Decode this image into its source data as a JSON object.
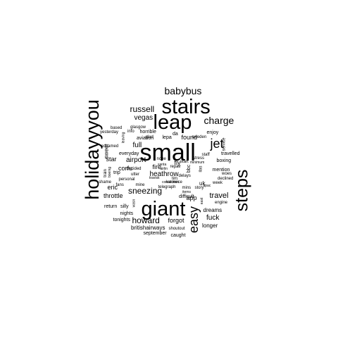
{
  "chart_data": {
    "type": "wordcloud",
    "color": "#000000",
    "title": "",
    "words": [
      {
        "text": "small",
        "rank": 1
      },
      {
        "text": "giant",
        "rank": 2
      },
      {
        "text": "stairs",
        "rank": 3
      },
      {
        "text": "leap",
        "rank": 4
      },
      {
        "text": "holidayyyou",
        "rank": 5
      },
      {
        "text": "steps",
        "rank": 6
      },
      {
        "text": "easy",
        "rank": 7
      },
      {
        "text": "babybus",
        "rank": 8
      },
      {
        "text": "jet",
        "rank": 9
      },
      {
        "text": "charge",
        "rank": 10
      },
      {
        "text": "russell",
        "rank": 11
      },
      {
        "text": "howard",
        "rank": 12
      },
      {
        "text": "sneezing",
        "rank": 13
      },
      {
        "text": "travel",
        "rank": 14
      },
      {
        "text": "fuck",
        "rank": 15
      },
      {
        "text": "vegas",
        "rank": 16
      },
      {
        "text": "heathrow",
        "rank": 17
      },
      {
        "text": "full",
        "rank": 18
      },
      {
        "text": "airport",
        "rank": 19
      },
      {
        "text": "fire",
        "rank": 20
      },
      {
        "text": "fly",
        "rank": 21
      },
      {
        "text": "found",
        "rank": 22
      },
      {
        "text": "app",
        "rank": 23
      },
      {
        "text": "forgot",
        "rank": 24
      },
      {
        "text": "corfu",
        "rank": 25
      },
      {
        "text": "star",
        "rank": 26
      },
      {
        "text": "eric",
        "rank": 27
      },
      {
        "text": "throttle",
        "rank": 28
      },
      {
        "text": "britishairways",
        "rank": 29
      },
      {
        "text": "longer",
        "rank": 30
      },
      {
        "text": "dreams",
        "rank": 31
      },
      {
        "text": "sweet",
        "rank": 32
      },
      {
        "text": "enjoy",
        "rank": 33
      },
      {
        "text": "everyday",
        "rank": 34
      },
      {
        "text": "aviation",
        "rank": 35
      },
      {
        "text": "horrible",
        "rank": 36
      },
      {
        "text": "lepa",
        "rank": 37
      },
      {
        "text": "travelled",
        "rank": 38
      },
      {
        "text": "boxing",
        "rank": 39
      },
      {
        "text": "mention",
        "rank": 40
      },
      {
        "text": "trip",
        "rank": 41
      },
      {
        "text": "difficult",
        "rank": 42
      },
      {
        "text": "silly",
        "rank": 43
      },
      {
        "text": "caught",
        "rank": 44
      },
      {
        "text": "september",
        "rank": 45
      },
      {
        "text": "tonights",
        "rank": 46
      },
      {
        "text": "nights",
        "rank": 47
      },
      {
        "text": "return",
        "rank": 48
      },
      {
        "text": "shoutout",
        "rank": 49
      },
      {
        "text": "engine",
        "rank": 50
      },
      {
        "text": "declined",
        "rank": 51
      },
      {
        "text": "woes",
        "rank": 52
      },
      {
        "text": "week",
        "rank": 53
      },
      {
        "text": "uk",
        "rank": 54
      },
      {
        "text": "story",
        "rank": 55
      },
      {
        "text": "personal",
        "rank": 56
      },
      {
        "text": "decided",
        "rank": 57
      },
      {
        "text": "utter",
        "rank": 58
      },
      {
        "text": "fans",
        "rank": 59
      },
      {
        "text": "mine",
        "rank": 60
      },
      {
        "text": "shame",
        "rank": 61
      },
      {
        "text": "based",
        "rank": 62
      },
      {
        "text": "yesterday",
        "rank": 63
      },
      {
        "text": "info",
        "rank": 64
      },
      {
        "text": "glasgow",
        "rank": 65
      },
      {
        "text": "glad",
        "rank": 66
      },
      {
        "text": "ashamed",
        "rank": 67
      },
      {
        "text": "leaving",
        "rank": 68
      },
      {
        "text": "staff",
        "rank": 69
      },
      {
        "text": "sweden",
        "rank": 70
      },
      {
        "text": "service",
        "rank": 71
      },
      {
        "text": "stress",
        "rank": 72
      },
      {
        "text": "minimum",
        "rank": 73
      },
      {
        "text": "nope",
        "rank": 74
      },
      {
        "text": "santa",
        "rank": 75
      },
      {
        "text": "start",
        "rank": 76
      },
      {
        "text": "repair",
        "rank": 77
      },
      {
        "text": "airlin",
        "rank": 78
      },
      {
        "text": "tim",
        "rank": 79
      },
      {
        "text": "travisk",
        "rank": 80
      },
      {
        "text": "connection",
        "rank": 81
      },
      {
        "text": "katowice",
        "rank": 82
      },
      {
        "text": "telegraph",
        "rank": 83
      },
      {
        "text": "delays",
        "rank": 84
      },
      {
        "text": "mins",
        "rank": 85
      },
      {
        "text": "items",
        "rank": 86
      },
      {
        "text": "bbc",
        "rank": 87
      },
      {
        "text": "ilas",
        "rank": 88
      },
      {
        "text": "apac",
        "rank": 89
      },
      {
        "text": "da",
        "rank": 90
      },
      {
        "text": "train",
        "rank": 91
      },
      {
        "text": "boeing",
        "rank": 92
      },
      {
        "text": "east",
        "rank": 93
      },
      {
        "text": "wasn",
        "rank": 94
      }
    ]
  }
}
